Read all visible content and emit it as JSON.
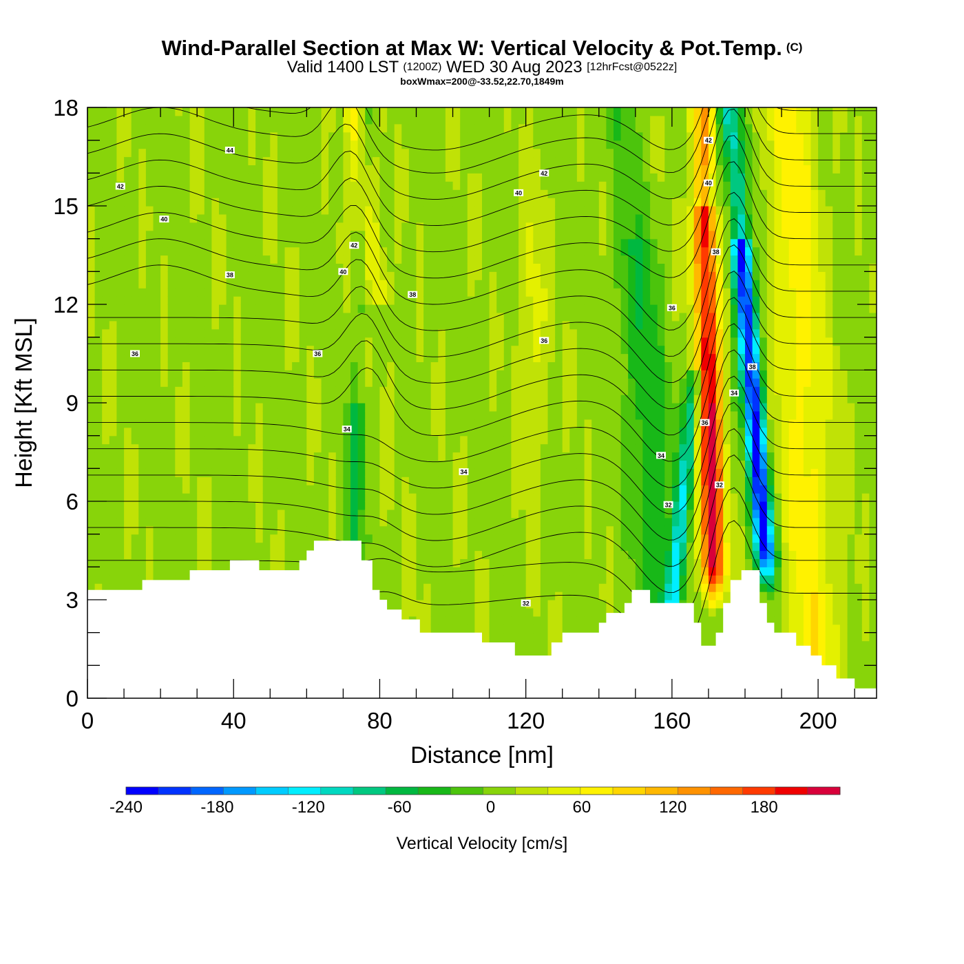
{
  "title": {
    "main": "Wind-Parallel Section at Max W: Vertical Velocity & Pot.Temp.",
    "main_mark": "(C)",
    "valid_pre": "Valid 1400 LST",
    "valid_utc": "(1200Z)",
    "valid_post": "WED 30 Aug 2023",
    "forecast": "[12hrFcst@0522z]",
    "box": "boxWmax=200@-33.52,22.70,1849m"
  },
  "chart_data": {
    "type": "heatmap",
    "xlabel": "Distance [nm]",
    "ylabel": "Height [Kft MSL]",
    "xlim": [
      0,
      216
    ],
    "ylim": [
      0,
      18
    ],
    "x_ticks": [
      0,
      40,
      80,
      120,
      160,
      200
    ],
    "y_ticks": [
      0,
      3,
      6,
      9,
      12,
      15,
      18
    ],
    "colorbar": {
      "title": "Vertical Velocity [cm/s]",
      "range": [
        -240,
        230
      ],
      "tick_values": [
        -240,
        -180,
        -120,
        -60,
        0,
        60,
        120,
        180
      ],
      "colors": [
        "#0000ff",
        "#0033ff",
        "#0066ff",
        "#0099ff",
        "#00ccff",
        "#00eeff",
        "#00d8c0",
        "#00c880",
        "#00b840",
        "#18b818",
        "#4cc40c",
        "#88d40a",
        "#c0e206",
        "#e4f000",
        "#fff200",
        "#ffd600",
        "#ffb800",
        "#ff9200",
        "#ff6800",
        "#ff3a00",
        "#f00000",
        "#d8003a"
      ]
    },
    "terrain_kft": [
      [
        0,
        3.3
      ],
      [
        15,
        3.3
      ],
      [
        15,
        3.6
      ],
      [
        28,
        3.6
      ],
      [
        28,
        3.9
      ],
      [
        39,
        3.9
      ],
      [
        39,
        4.2
      ],
      [
        47,
        4.2
      ],
      [
        47,
        3.9
      ],
      [
        58,
        3.9
      ],
      [
        58,
        4.2
      ],
      [
        60,
        4.2
      ],
      [
        60,
        4.5
      ],
      [
        62,
        4.5
      ],
      [
        62,
        4.8
      ],
      [
        75,
        4.8
      ],
      [
        75,
        4.2
      ],
      [
        78,
        4.2
      ],
      [
        78,
        3.3
      ],
      [
        80,
        3.3
      ],
      [
        80,
        3.0
      ],
      [
        82,
        3.0
      ],
      [
        82,
        2.7
      ],
      [
        86,
        2.7
      ],
      [
        86,
        2.4
      ],
      [
        91,
        2.4
      ],
      [
        91,
        2.0
      ],
      [
        108,
        2.0
      ],
      [
        108,
        1.7
      ],
      [
        117,
        1.7
      ],
      [
        117,
        1.3
      ],
      [
        127,
        1.3
      ],
      [
        127,
        1.7
      ],
      [
        130,
        1.7
      ],
      [
        130,
        2.0
      ],
      [
        140,
        2.0
      ],
      [
        140,
        2.3
      ],
      [
        142,
        2.3
      ],
      [
        142,
        2.6
      ],
      [
        147,
        2.6
      ],
      [
        147,
        2.9
      ],
      [
        149,
        2.9
      ],
      [
        149,
        3.3
      ],
      [
        154,
        3.3
      ],
      [
        154,
        2.9
      ],
      [
        166,
        2.9
      ],
      [
        166,
        2.3
      ],
      [
        168,
        2.3
      ],
      [
        168,
        1.6
      ],
      [
        172,
        1.6
      ],
      [
        172,
        2.0
      ],
      [
        174,
        2.0
      ],
      [
        174,
        2.9
      ],
      [
        176,
        2.9
      ],
      [
        176,
        3.6
      ],
      [
        179,
        3.6
      ],
      [
        179,
        3.9
      ],
      [
        184,
        3.9
      ],
      [
        184,
        2.9
      ],
      [
        186,
        2.9
      ],
      [
        186,
        2.3
      ],
      [
        188,
        2.3
      ],
      [
        188,
        2.0
      ],
      [
        194,
        2.0
      ],
      [
        194,
        1.6
      ],
      [
        198,
        1.6
      ],
      [
        198,
        1.3
      ],
      [
        201,
        1.3
      ],
      [
        201,
        1.0
      ],
      [
        205,
        1.0
      ],
      [
        205,
        0.6
      ],
      [
        210,
        0.6
      ],
      [
        210,
        0.3
      ],
      [
        212,
        0.3
      ],
      [
        212,
        0.3
      ],
      [
        216,
        0.3
      ]
    ],
    "theta_isentropes_C": [
      32,
      34,
      36,
      38,
      40,
      42,
      44
    ],
    "contour_labels": [
      {
        "text": "44",
        "x": 39,
        "y": 16.7
      },
      {
        "text": "42",
        "x": 9,
        "y": 15.6
      },
      {
        "text": "42",
        "x": 125,
        "y": 16.0
      },
      {
        "text": "42",
        "x": 73,
        "y": 13.8
      },
      {
        "text": "42",
        "x": 170,
        "y": 17.0
      },
      {
        "text": "40",
        "x": 21,
        "y": 14.6
      },
      {
        "text": "40",
        "x": 118,
        "y": 15.4
      },
      {
        "text": "40",
        "x": 70,
        "y": 13.0
      },
      {
        "text": "40",
        "x": 170,
        "y": 15.7
      },
      {
        "text": "38",
        "x": 39,
        "y": 12.9
      },
      {
        "text": "38",
        "x": 89,
        "y": 12.3
      },
      {
        "text": "38",
        "x": 172,
        "y": 13.6
      },
      {
        "text": "38",
        "x": 182,
        "y": 10.1
      },
      {
        "text": "36",
        "x": 13,
        "y": 10.5
      },
      {
        "text": "36",
        "x": 63,
        "y": 10.5
      },
      {
        "text": "36",
        "x": 125,
        "y": 10.9
      },
      {
        "text": "36",
        "x": 160,
        "y": 11.9
      },
      {
        "text": "36",
        "x": 169,
        "y": 8.4
      },
      {
        "text": "34",
        "x": 71,
        "y": 8.2
      },
      {
        "text": "34",
        "x": 103,
        "y": 6.9
      },
      {
        "text": "34",
        "x": 157,
        "y": 7.4
      },
      {
        "text": "34",
        "x": 177,
        "y": 9.3
      },
      {
        "text": "32",
        "x": 120,
        "y": 2.9
      },
      {
        "text": "32",
        "x": 159,
        "y": 5.9
      },
      {
        "text": "32",
        "x": 173,
        "y": 6.5
      }
    ],
    "updraft_max_x_nm": 170,
    "downdraft_max_x_nm": 183
  }
}
